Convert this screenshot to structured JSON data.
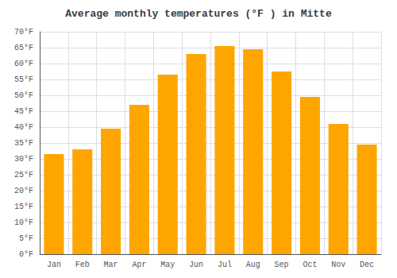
{
  "chart_data": {
    "type": "bar",
    "title": "Average monthly temperatures (°F ) in Mitte",
    "categories": [
      "Jan",
      "Feb",
      "Mar",
      "Apr",
      "May",
      "Jun",
      "Jul",
      "Aug",
      "Sep",
      "Oct",
      "Nov",
      "Dec"
    ],
    "values": [
      31.5,
      33.0,
      39.5,
      47.0,
      56.5,
      63.0,
      65.5,
      64.5,
      57.5,
      49.5,
      41.0,
      34.5
    ],
    "color": "#FFA500",
    "ylim": [
      0,
      70
    ],
    "yticks": [
      {
        "value": 0,
        "label": "0°F"
      },
      {
        "value": 5,
        "label": "5°F"
      },
      {
        "value": 10,
        "label": "10°F"
      },
      {
        "value": 15,
        "label": "15°F"
      },
      {
        "value": 20,
        "label": "20°F"
      },
      {
        "value": 25,
        "label": "25°F"
      },
      {
        "value": 30,
        "label": "30°F"
      },
      {
        "value": 35,
        "label": "35°F"
      },
      {
        "value": 40,
        "label": "40°F"
      },
      {
        "value": 45,
        "label": "45°F"
      },
      {
        "value": 50,
        "label": "50°F"
      },
      {
        "value": 55,
        "label": "55°F"
      },
      {
        "value": 60,
        "label": "60°F"
      },
      {
        "value": 65,
        "label": "65°F"
      },
      {
        "value": 70,
        "label": "70°F"
      }
    ],
    "grid": true
  }
}
